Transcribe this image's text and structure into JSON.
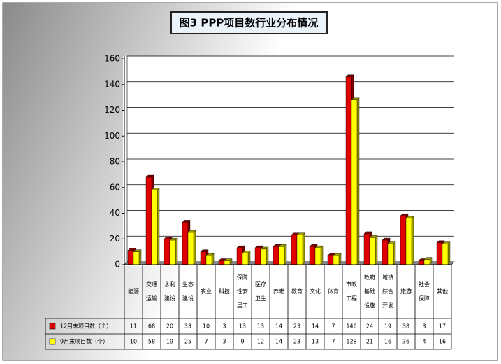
{
  "chart_data": {
    "type": "bar",
    "title": "图3 PPP项目数行业分布情况",
    "categories": [
      "能源",
      "交通运输",
      "水利建设",
      "生态建设",
      "农业",
      "科技",
      "保障性安居工",
      "医疗卫生",
      "养老",
      "教育",
      "文化",
      "体育",
      "市政工程",
      "政府基础设施",
      "城镇综合开发",
      "旅游",
      "社会保障",
      "其他"
    ],
    "series": [
      {
        "name": "12月末项目数（个）",
        "color": "#e00000",
        "values": [
          11,
          68,
          20,
          33,
          10,
          3,
          13,
          13,
          14,
          23,
          14,
          7,
          146,
          24,
          19,
          38,
          3,
          17
        ]
      },
      {
        "name": "9月末项目数（个）",
        "color": "#ffff00",
        "values": [
          10,
          58,
          19,
          25,
          7,
          3,
          9,
          12,
          14,
          23,
          13,
          7,
          128,
          21,
          16,
          36,
          4,
          16
        ]
      }
    ],
    "ylim": [
      0,
      160
    ],
    "yticks": [
      0,
      20,
      40,
      60,
      80,
      100,
      120,
      140,
      160
    ],
    "grid": true
  }
}
